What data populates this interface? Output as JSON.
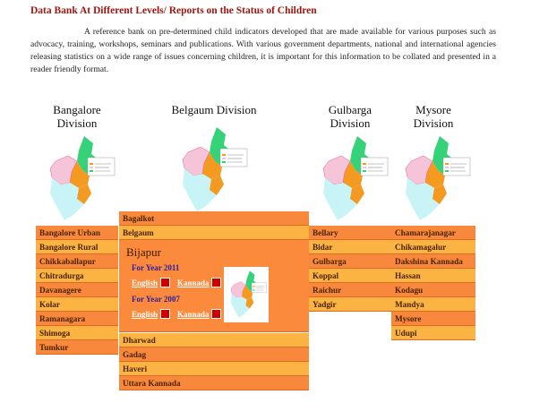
{
  "page_title": "Data Bank At Different Levels/ Reports on the Status of Children",
  "intro": "A reference bank on pre-determined child indicators developed that are made available for various purposes such as advocacy, training, workshops, seminars and publications. With various government departments, national and international agencies releasing statistics on a wide range of issues concerning children, it is important for this information to be collated and presented in a reader friendly format.",
  "divisions": [
    {
      "name": "Bangalore Division",
      "districts": [
        "Bangalore Urban",
        "Bangalore Rural",
        "Chikkaballapur",
        "Chitradurga",
        "Davanagere",
        "Kolar",
        "Ramanagara",
        "Shimoga",
        "Tumkur"
      ]
    },
    {
      "name": "Belgaum Division",
      "districts": [
        "Bagalkot",
        "Belgaum",
        "Bijapur",
        "Dharwad",
        "Gadag",
        "Haveri",
        "Uttara Kannada"
      ]
    },
    {
      "name": "Gulbarga Division",
      "districts": [
        "Bellary",
        "Bidar",
        "Gulbarga",
        "Koppal",
        "Raichur",
        "Yadgir"
      ]
    },
    {
      "name": "Mysore Division",
      "districts": [
        "Chamarajanagar",
        "Chikamagalur",
        "Dakshina Kannada",
        "Hassan",
        "Kodagu",
        "Mandya",
        "Mysore",
        "Udupi"
      ]
    }
  ],
  "expanded": {
    "division": 1,
    "district": 2,
    "years": [
      {
        "label": "For Year 2011",
        "links": [
          "English",
          "Kannada"
        ]
      },
      {
        "label": "For Year 2007",
        "links": [
          "English",
          "Kannada"
        ]
      }
    ]
  }
}
